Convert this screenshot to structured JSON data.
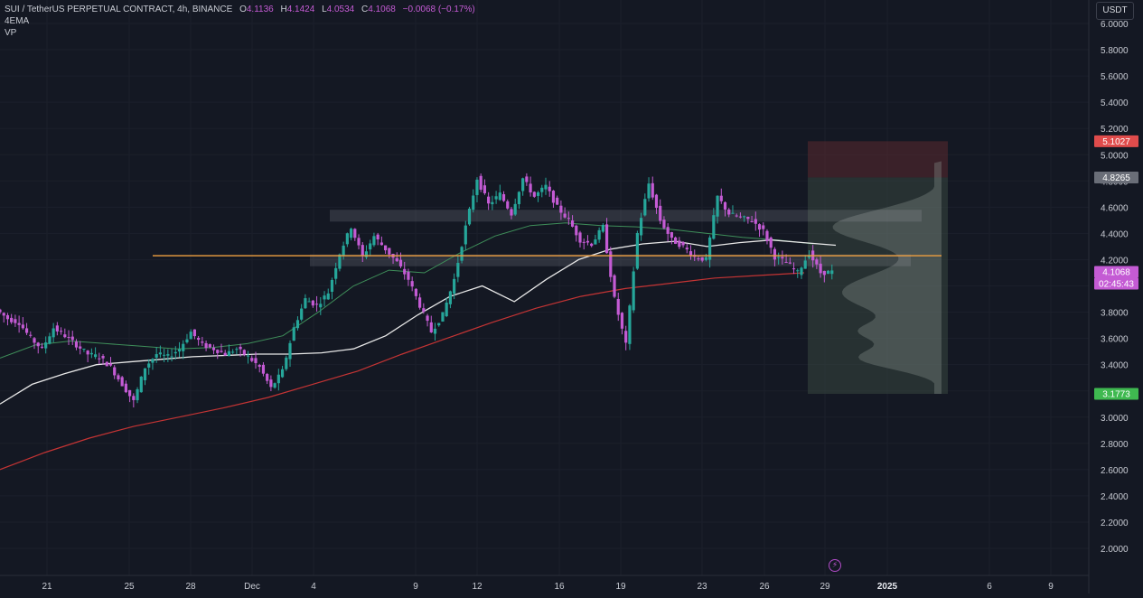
{
  "legend": {
    "symbol": "SUI / TetherUS PERPETUAL CONTRACT, 4h, BINANCE",
    "o_label": "O",
    "o_value": "4.1136",
    "h_label": "H",
    "h_value": "4.1424",
    "l_label": "L",
    "l_value": "4.0534",
    "c_label": "C",
    "c_value": "4.1068",
    "change": "−0.0068 (−0.17%)",
    "indicator_1": "4EMA",
    "indicator_2": "VP"
  },
  "currency": "USDT",
  "flash_icon": "lightning-icon",
  "colors": {
    "background": "#141823",
    "up_candle": "#26a69a",
    "down_candle": "#c45bd4",
    "level_line": "#f0a040",
    "ema_white": "#e8e8e8",
    "ema_green": "#3f8f5a",
    "ema_red": "#c43434",
    "ema_blue": "#2a3aa8",
    "stop_zone": "#5a2a30",
    "target_zone": "#3a4a42"
  },
  "price_badges": [
    {
      "label": "5.1027",
      "color": "#e04c4c"
    },
    {
      "label": "4.8265",
      "color": "#6a6e78"
    },
    {
      "label": "4.1068",
      "color": "#c45bd4"
    },
    {
      "label": "02:45:43",
      "color": "#c45bd4"
    },
    {
      "label": "3.1773",
      "color": "#3fb950"
    }
  ],
  "chart_data": {
    "type": "candlestick",
    "title": "SUI / TetherUS PERPETUAL CONTRACT, 4h, BINANCE",
    "ylim": [
      1.8,
      6.1
    ],
    "y_ticks": [
      "6.0000",
      "5.8000",
      "5.6000",
      "5.4000",
      "5.2000",
      "5.0000",
      "4.8000",
      "4.6000",
      "4.4000",
      "4.2000",
      "4.0000",
      "3.8000",
      "3.6000",
      "3.4000",
      "3.2000",
      "3.0000",
      "2.8000",
      "2.6000",
      "2.4000",
      "2.2000",
      "2.0000"
    ],
    "x_ticks": [
      "21",
      "25",
      "28",
      "Dec",
      "4",
      "9",
      "12",
      "16",
      "19",
      "23",
      "26",
      "29",
      "2025",
      "6",
      "9"
    ],
    "level_line": 4.23,
    "zones": [
      {
        "name": "resistance",
        "low": 4.49,
        "high": 4.58
      },
      {
        "name": "support",
        "low": 4.15,
        "high": 4.24
      }
    ],
    "position": {
      "stop": 5.1027,
      "entry": 4.8265,
      "target": 3.1773
    },
    "ohlc_anchor_prices": [
      3.82,
      3.75,
      3.72,
      3.6,
      3.52,
      3.68,
      3.62,
      3.55,
      3.48,
      3.46,
      3.38,
      3.25,
      3.12,
      3.38,
      3.48,
      3.46,
      3.52,
      3.65,
      3.55,
      3.52,
      3.48,
      3.52,
      3.46,
      3.38,
      3.22,
      3.35,
      3.68,
      3.9,
      3.85,
      3.95,
      4.25,
      4.45,
      4.22,
      4.38,
      4.28,
      4.18,
      4.05,
      3.85,
      3.65,
      3.78,
      4.05,
      4.45,
      4.82,
      4.62,
      4.7,
      4.55,
      4.82,
      4.68,
      4.76,
      4.6,
      4.5,
      4.35,
      4.32,
      4.45,
      3.9,
      3.55,
      4.4,
      4.78,
      4.5,
      4.35,
      4.3,
      4.22,
      4.2,
      4.68,
      4.55,
      4.52,
      4.5,
      4.42,
      4.22,
      4.18,
      4.1,
      4.25,
      4.1,
      4.1068
    ],
    "ema_white": [
      3.1,
      3.25,
      3.33,
      3.4,
      3.42,
      3.44,
      3.46,
      3.47,
      3.48,
      3.48,
      3.49,
      3.52,
      3.62,
      3.78,
      3.92,
      4.0,
      3.88,
      4.05,
      4.2,
      4.28,
      4.32,
      4.34,
      4.3,
      4.33,
      4.35,
      4.33,
      4.31
    ],
    "ema_green": [
      3.45,
      3.55,
      3.58,
      3.56,
      3.54,
      3.52,
      3.53,
      3.56,
      3.62,
      3.8,
      4.0,
      4.12,
      4.1,
      4.25,
      4.38,
      4.46,
      4.48,
      4.46,
      4.45,
      4.43,
      4.4,
      4.37,
      4.35,
      4.32
    ],
    "ema_red": [
      2.6,
      2.73,
      2.84,
      2.93,
      3.0,
      3.07,
      3.15,
      3.25,
      3.35,
      3.48,
      3.6,
      3.72,
      3.83,
      3.92,
      3.98,
      4.02,
      4.06,
      4.08,
      4.1
    ]
  }
}
